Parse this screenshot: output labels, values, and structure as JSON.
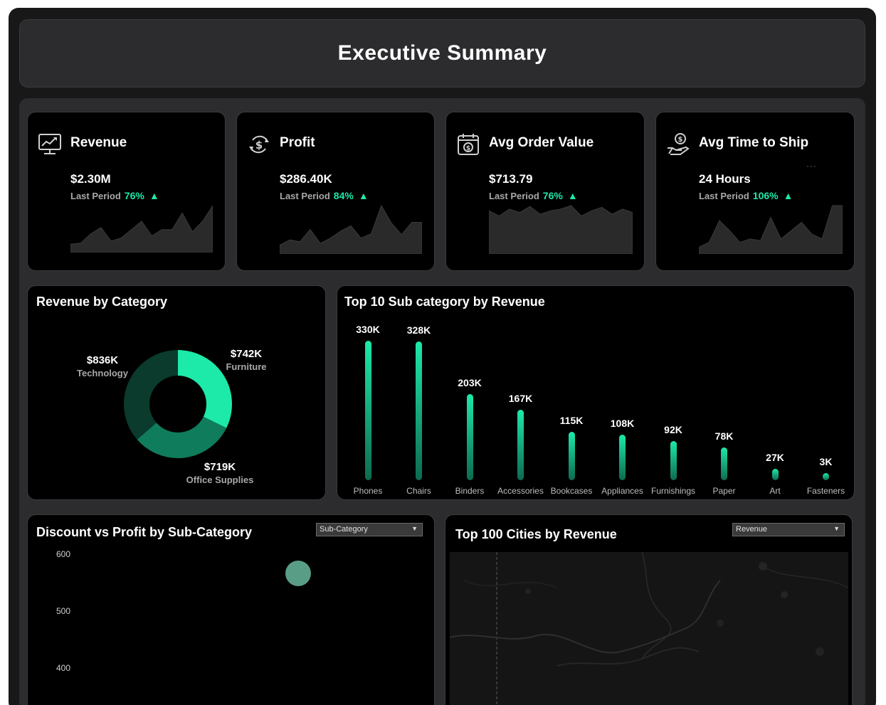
{
  "header": {
    "title": "Executive Summary"
  },
  "kpis": [
    {
      "title": "Revenue",
      "icon": "chart-monitor-icon",
      "value": "$2.30M",
      "period_label": "Last Period",
      "pct": "76%",
      "arrow": "▲",
      "trend": [
        8,
        9,
        18,
        24,
        11,
        14,
        22,
        30,
        16,
        22,
        22,
        38,
        20,
        30,
        45
      ]
    },
    {
      "title": "Profit",
      "icon": "dollar-cycle-icon",
      "value": "$286.40K",
      "period_label": "Last Period",
      "pct": "84%",
      "arrow": "▲",
      "trend": [
        10,
        16,
        14,
        28,
        12,
        18,
        26,
        32,
        18,
        23,
        55,
        35,
        22,
        36,
        36
      ]
    },
    {
      "title": "Avg Order Value",
      "icon": "calendar-coin-icon",
      "value": "$713.79",
      "period_label": "Last Period",
      "pct": "76%",
      "arrow": "▲",
      "trend": [
        50,
        44,
        52,
        48,
        55,
        46,
        50,
        52,
        56,
        44,
        50,
        54,
        46,
        52,
        48
      ]
    },
    {
      "title": "Avg Time to Ship",
      "icon": "hand-dollar-icon",
      "value": "24 Hours",
      "period_label": "Last Period",
      "pct": "106%",
      "arrow": "▲",
      "trend": [
        8,
        14,
        40,
        28,
        14,
        18,
        16,
        44,
        18,
        28,
        38,
        24,
        18,
        58,
        58
      ]
    }
  ],
  "revenue_by_category": {
    "title": "Revenue by Category",
    "segments": [
      {
        "label": "Furniture",
        "value": "$742K",
        "amount": 742,
        "color": "#1de9a9"
      },
      {
        "label": "Office Supplies",
        "value": "$719K",
        "amount": 719,
        "color": "#0f7d5c"
      },
      {
        "label": "Technology",
        "value": "$836K",
        "amount": 836,
        "color": "#0a3b2d"
      }
    ]
  },
  "top_subcategory": {
    "title": "Top 10 Sub category by Revenue",
    "chart_data": {
      "type": "bar",
      "title": "Top 10 Sub category by Revenue",
      "categories": [
        "Phones",
        "Chairs",
        "Binders",
        "Accessories",
        "Bookcases",
        "Appliances",
        "Furnishings",
        "Paper",
        "Art",
        "Fasteners"
      ],
      "values": [
        330,
        328,
        203,
        167,
        115,
        108,
        92,
        78,
        27,
        3
      ],
      "labels": [
        "330K",
        "328K",
        "203K",
        "167K",
        "115K",
        "108K",
        "92K",
        "78K",
        "27K",
        "3K"
      ],
      "ylim": [
        0,
        330
      ]
    }
  },
  "discount_profit": {
    "title": "Discount vs Profit by Sub-Category",
    "dropdown": "Sub-Category",
    "dropdown_arrow": "▼",
    "chart_data": {
      "type": "scatter",
      "title": "Discount vs Profit by Sub-Category",
      "yticks": [
        "600",
        "500",
        "400"
      ],
      "points": [
        {
          "x": 0.5,
          "y": 566
        }
      ]
    }
  },
  "top_cities": {
    "title": "Top 100 Cities by Revenue",
    "dropdown": "Revenue",
    "dropdown_arrow": "▼"
  }
}
